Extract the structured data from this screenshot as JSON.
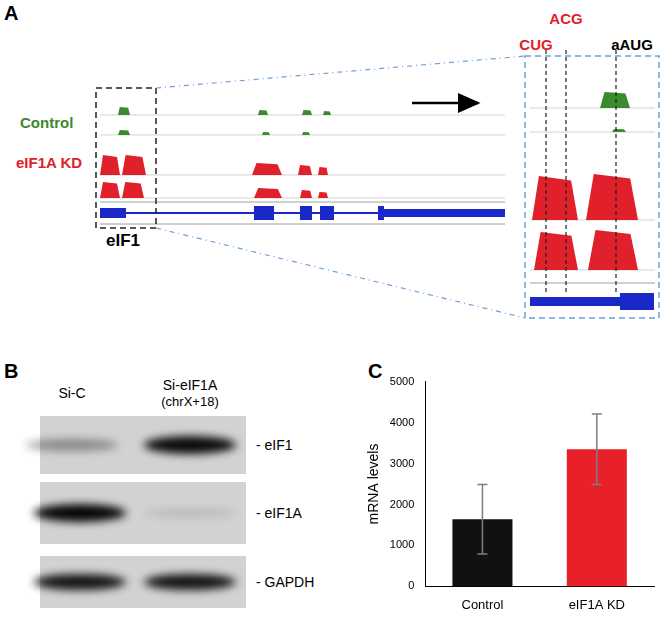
{
  "panel_labels": [
    "A",
    "B",
    "C"
  ],
  "panel_a": {
    "tracks": [
      {
        "label": "Control",
        "color": "#3a8a2e"
      },
      {
        "label": "eIF1A KD",
        "color": "#e0202a"
      }
    ],
    "gene": "eIF1",
    "codons": [
      {
        "label": "CUG",
        "color": "#e0202a"
      },
      {
        "label": "ACG",
        "color": "#e0202a"
      },
      {
        "label": "aAUG",
        "color": "#000000"
      }
    ]
  },
  "panel_b": {
    "lanes": [
      [
        "Si-C"
      ],
      [
        "Si-eIF1A",
        "(chrX+18)"
      ]
    ],
    "proteins": [
      "- eIF1",
      "- eIF1A",
      "- GAPDH"
    ]
  },
  "chart_data": {
    "type": "bar",
    "categories": [
      "Control",
      "eIF1A KD"
    ],
    "values": [
      1640,
      3350
    ],
    "errors": [
      850,
      860
    ],
    "colors": [
      "#111111",
      "#e8202a"
    ],
    "y_label": "mRNA levels",
    "ylim": [
      0,
      5000
    ],
    "yticks": [
      0,
      1000,
      2000,
      3000,
      4000,
      5000
    ],
    "grid": false
  }
}
